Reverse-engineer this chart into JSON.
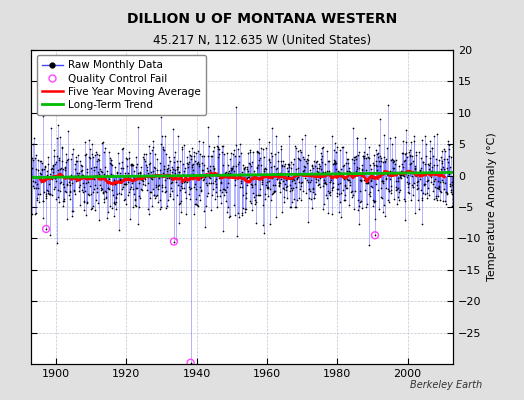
{
  "title": "DILLION U OF MONTANA WESTERN",
  "subtitle": "45.217 N, 112.635 W (United States)",
  "ylabel": "Temperature Anomaly (°C)",
  "credit": "Berkeley Earth",
  "xlim": [
    1893,
    2013
  ],
  "ylim": [
    -30,
    20
  ],
  "yticks": [
    -25,
    -20,
    -15,
    -10,
    -5,
    0,
    5,
    10,
    15,
    20
  ],
  "xticks": [
    1900,
    1920,
    1940,
    1960,
    1980,
    2000
  ],
  "start_year": 1893,
  "end_year": 2013,
  "seed": 17,
  "background_color": "#e0e0e0",
  "plot_bg_color": "#ffffff",
  "raw_line_color": "#4444ff",
  "raw_dot_color": "#000000",
  "qc_fail_color": "#ff44ff",
  "moving_avg_color": "#ff0000",
  "trend_color": "#00bb00",
  "title_fontsize": 10,
  "subtitle_fontsize": 8.5,
  "legend_fontsize": 7.5
}
